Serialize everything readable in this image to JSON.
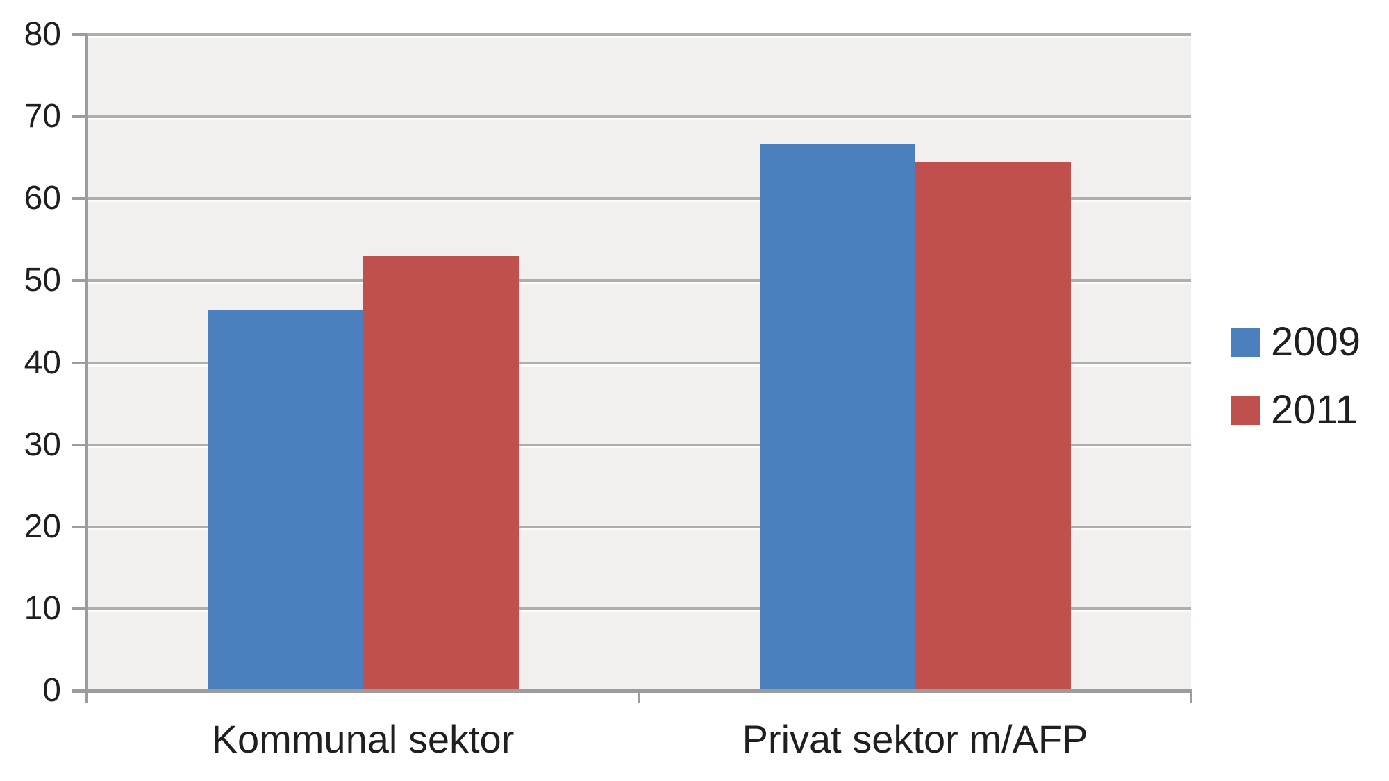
{
  "chart_data": {
    "type": "bar",
    "title": "",
    "xlabel": "",
    "ylabel": "",
    "categories": [
      "Kommunal sektor",
      "Privat sektor m/AFP"
    ],
    "series": [
      {
        "name": "2009",
        "color": "#4c7fbe",
        "values": [
          46.5,
          66.7
        ]
      },
      {
        "name": "2011",
        "color": "#c0504d",
        "values": [
          53,
          64.5
        ]
      }
    ],
    "ylim": [
      0,
      80
    ],
    "yticks": [
      0,
      10,
      20,
      30,
      40,
      50,
      60,
      70,
      80
    ],
    "grid": true,
    "legend_position": "right",
    "colors": {
      "plot_background": "#f1f0ee",
      "gridline": "#aeaeae",
      "axis": "#9c9c9c",
      "text": "#1f1f1f",
      "canvas_background": "#ffffff"
    }
  }
}
